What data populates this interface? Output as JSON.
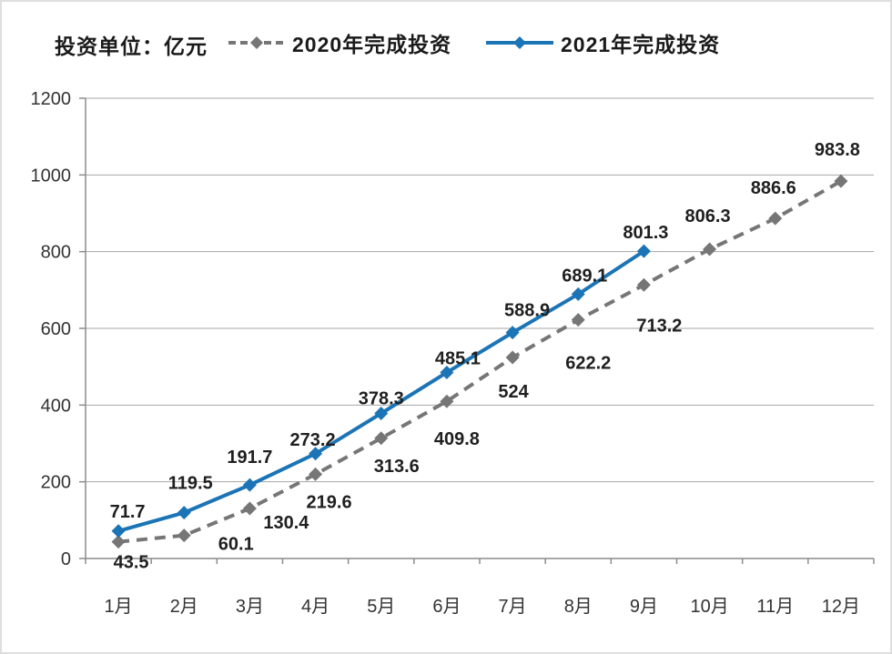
{
  "chart_data": {
    "type": "line",
    "title": "",
    "unit_label": "投资单位：亿元",
    "xlabel": "",
    "ylabel": "",
    "legend_position": "top",
    "grid": "horizontal",
    "categories": [
      "1月",
      "2月",
      "3月",
      "4月",
      "5月",
      "6月",
      "7月",
      "8月",
      "9月",
      "10月",
      "11月",
      "12月"
    ],
    "y_axis": {
      "min": 0,
      "max": 1200,
      "step": 200,
      "tick_labels": [
        "0",
        "200",
        "400",
        "600",
        "800",
        "1000",
        "1200"
      ]
    },
    "series": [
      {
        "name": "2020年完成投资",
        "color": "#767676",
        "line_style": "dashed",
        "marker": "diamond",
        "values": [
          43.5,
          60.1,
          130.4,
          219.6,
          313.6,
          409.8,
          524,
          622.2,
          713.2,
          806.3,
          886.6,
          983.8
        ],
        "label_offsets": [
          [
            14,
            29
          ],
          [
            57,
            16
          ],
          [
            40,
            22
          ],
          [
            15,
            37
          ],
          [
            17,
            37
          ],
          [
            11,
            48
          ],
          [
            1,
            44
          ],
          [
            11,
            54
          ],
          [
            17,
            51
          ],
          [
            -2,
            -30
          ],
          [
            -2,
            -27
          ],
          [
            -4,
            -28
          ]
        ]
      },
      {
        "name": "2021年完成投资",
        "color": "#1b74b5",
        "line_style": "solid",
        "marker": "diamond",
        "values": [
          71.7,
          119.5,
          191.7,
          273.2,
          378.3,
          485.1,
          588.9,
          689.1,
          801.3
        ],
        "label_offsets": [
          [
            10,
            -15
          ],
          [
            7,
            -26
          ],
          [
            0,
            -24
          ],
          [
            -3,
            -9
          ],
          [
            0,
            -10
          ],
          [
            12,
            -9
          ],
          [
            16,
            -18
          ],
          [
            7,
            -14
          ],
          [
            2,
            -14
          ]
        ]
      }
    ]
  }
}
